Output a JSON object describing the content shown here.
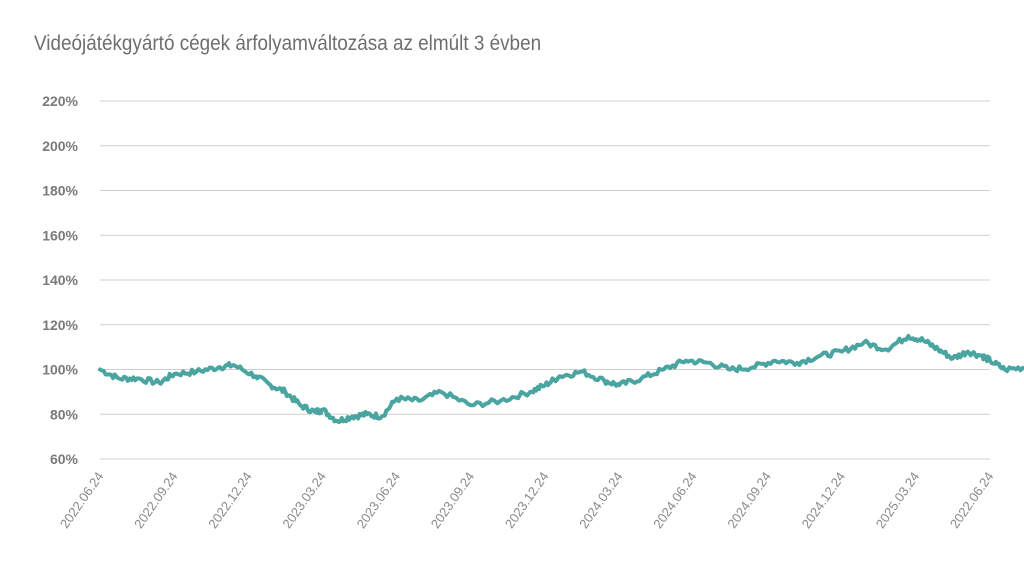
{
  "chart_data": {
    "type": "line",
    "title": "Videójátékgyártó cégek árfolyamváltozása az elmúlt 3 évben",
    "xlabel": "",
    "ylabel": "",
    "ylim": [
      60,
      220
    ],
    "y_ticks": [
      "60%",
      "80%",
      "100%",
      "120%",
      "140%",
      "160%",
      "180%",
      "200%",
      "220%"
    ],
    "x_ticks": [
      "2022.06.24",
      "2022.09.24",
      "2022.12.24",
      "2023.03.24",
      "2023.06.24",
      "2023.09.24",
      "2023.12.24",
      "2024.03.24",
      "2024.06.24",
      "2024.09.24",
      "2024.12.24",
      "2025.03.24",
      "2022.06.24"
    ],
    "grid": true,
    "line_color": "#4aa5a1",
    "series": [
      {
        "x": [
          0,
          0.25,
          0.5,
          0.8,
          1.0,
          1.3,
          1.6,
          1.8,
          2.1,
          2.3,
          2.5,
          2.7,
          2.9,
          3.0,
          3.2,
          3.4,
          3.6,
          3.8,
          4.0,
          4.3,
          4.6,
          5.0,
          5.4,
          5.8,
          6.0,
          6.2,
          6.5,
          6.8,
          7.0,
          7.3,
          7.6,
          7.9,
          8.2,
          8.5,
          8.8,
          9.1,
          9.4,
          9.7,
          10.0,
          10.3,
          10.6,
          10.9,
          11.1,
          11.3,
          11.5,
          11.7,
          11.9,
          12.0,
          12.2,
          12.5,
          12.7,
          12.9,
          13.0
        ],
        "values": [
          100,
          96,
          96,
          94,
          98,
          99,
          101,
          102,
          97,
          93,
          90,
          84,
          81,
          82,
          77,
          79,
          80,
          79,
          87,
          86,
          90,
          84,
          86,
          90,
          93,
          97,
          99,
          95,
          93,
          96,
          100,
          104,
          103,
          100,
          101,
          104,
          103,
          106,
          108,
          112,
          109,
          115,
          113,
          109,
          105,
          108,
          106,
          104,
          100,
          101,
          100,
          98,
          105
        ]
      }
    ]
  }
}
